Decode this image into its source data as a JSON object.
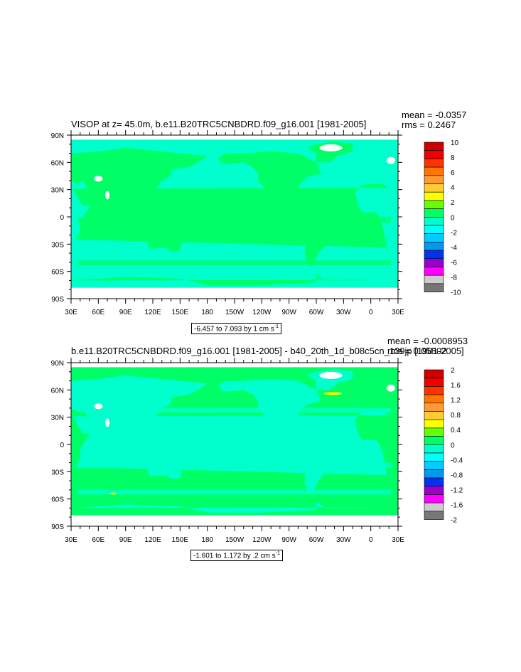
{
  "panels": [
    {
      "title": "VISOP at z=  45.0m, b.e11.B20TRC5CNBDRD.f09_g16.001 [1981-2005]",
      "mean": "mean = -0.0357",
      "rms": "rms = 0.2467",
      "contour_info": "-6.457 to 7.093 by 1 cm s",
      "contour_unit_exp": "-1",
      "colorbar_labels": [
        "10",
        "8",
        "6",
        "4",
        "2",
        "0",
        "-2",
        "-4",
        "-6",
        "-8",
        "-10"
      ],
      "dominant_color": "#00ffcc",
      "secondary_color": "#00ff66"
    },
    {
      "title": "b.e11.B20TRC5CNBDRD.f09_g16.001 [1981-2005] - b40_20th_1d_b08c5cn_139jp [1981-2005]",
      "mean": "mean = -0.0008953",
      "rms": "rms = 0.05802",
      "contour_info": "-1.601 to 1.172 by .2 cm s",
      "contour_unit_exp": "-1",
      "colorbar_labels": [
        "2",
        "1.6",
        "1.2",
        "0.8",
        "0.4",
        "0",
        "-0.4",
        "-0.8",
        "-1.2",
        "-1.6",
        "-2"
      ],
      "dominant_color": "#00ff66",
      "secondary_color": "#00ffcc"
    }
  ],
  "lat_labels": [
    "90N",
    "60N",
    "30N",
    "0",
    "30S",
    "60S",
    "90S"
  ],
  "lon_labels": [
    "30E",
    "60E",
    "90E",
    "120E",
    "150E",
    "180",
    "150W",
    "120W",
    "90W",
    "60W",
    "30W",
    "0",
    "30E"
  ],
  "colorbar_colors": [
    "#cc0000",
    "#ee0000",
    "#ff3300",
    "#ff7700",
    "#ff9933",
    "#ffcc33",
    "#ffff00",
    "#66ff00",
    "#00ff66",
    "#00ffcc",
    "#00ffff",
    "#00ccff",
    "#0099ee",
    "#0033ee",
    "#9900cc",
    "#ff00ff",
    "#cccccc",
    "#777777"
  ]
}
